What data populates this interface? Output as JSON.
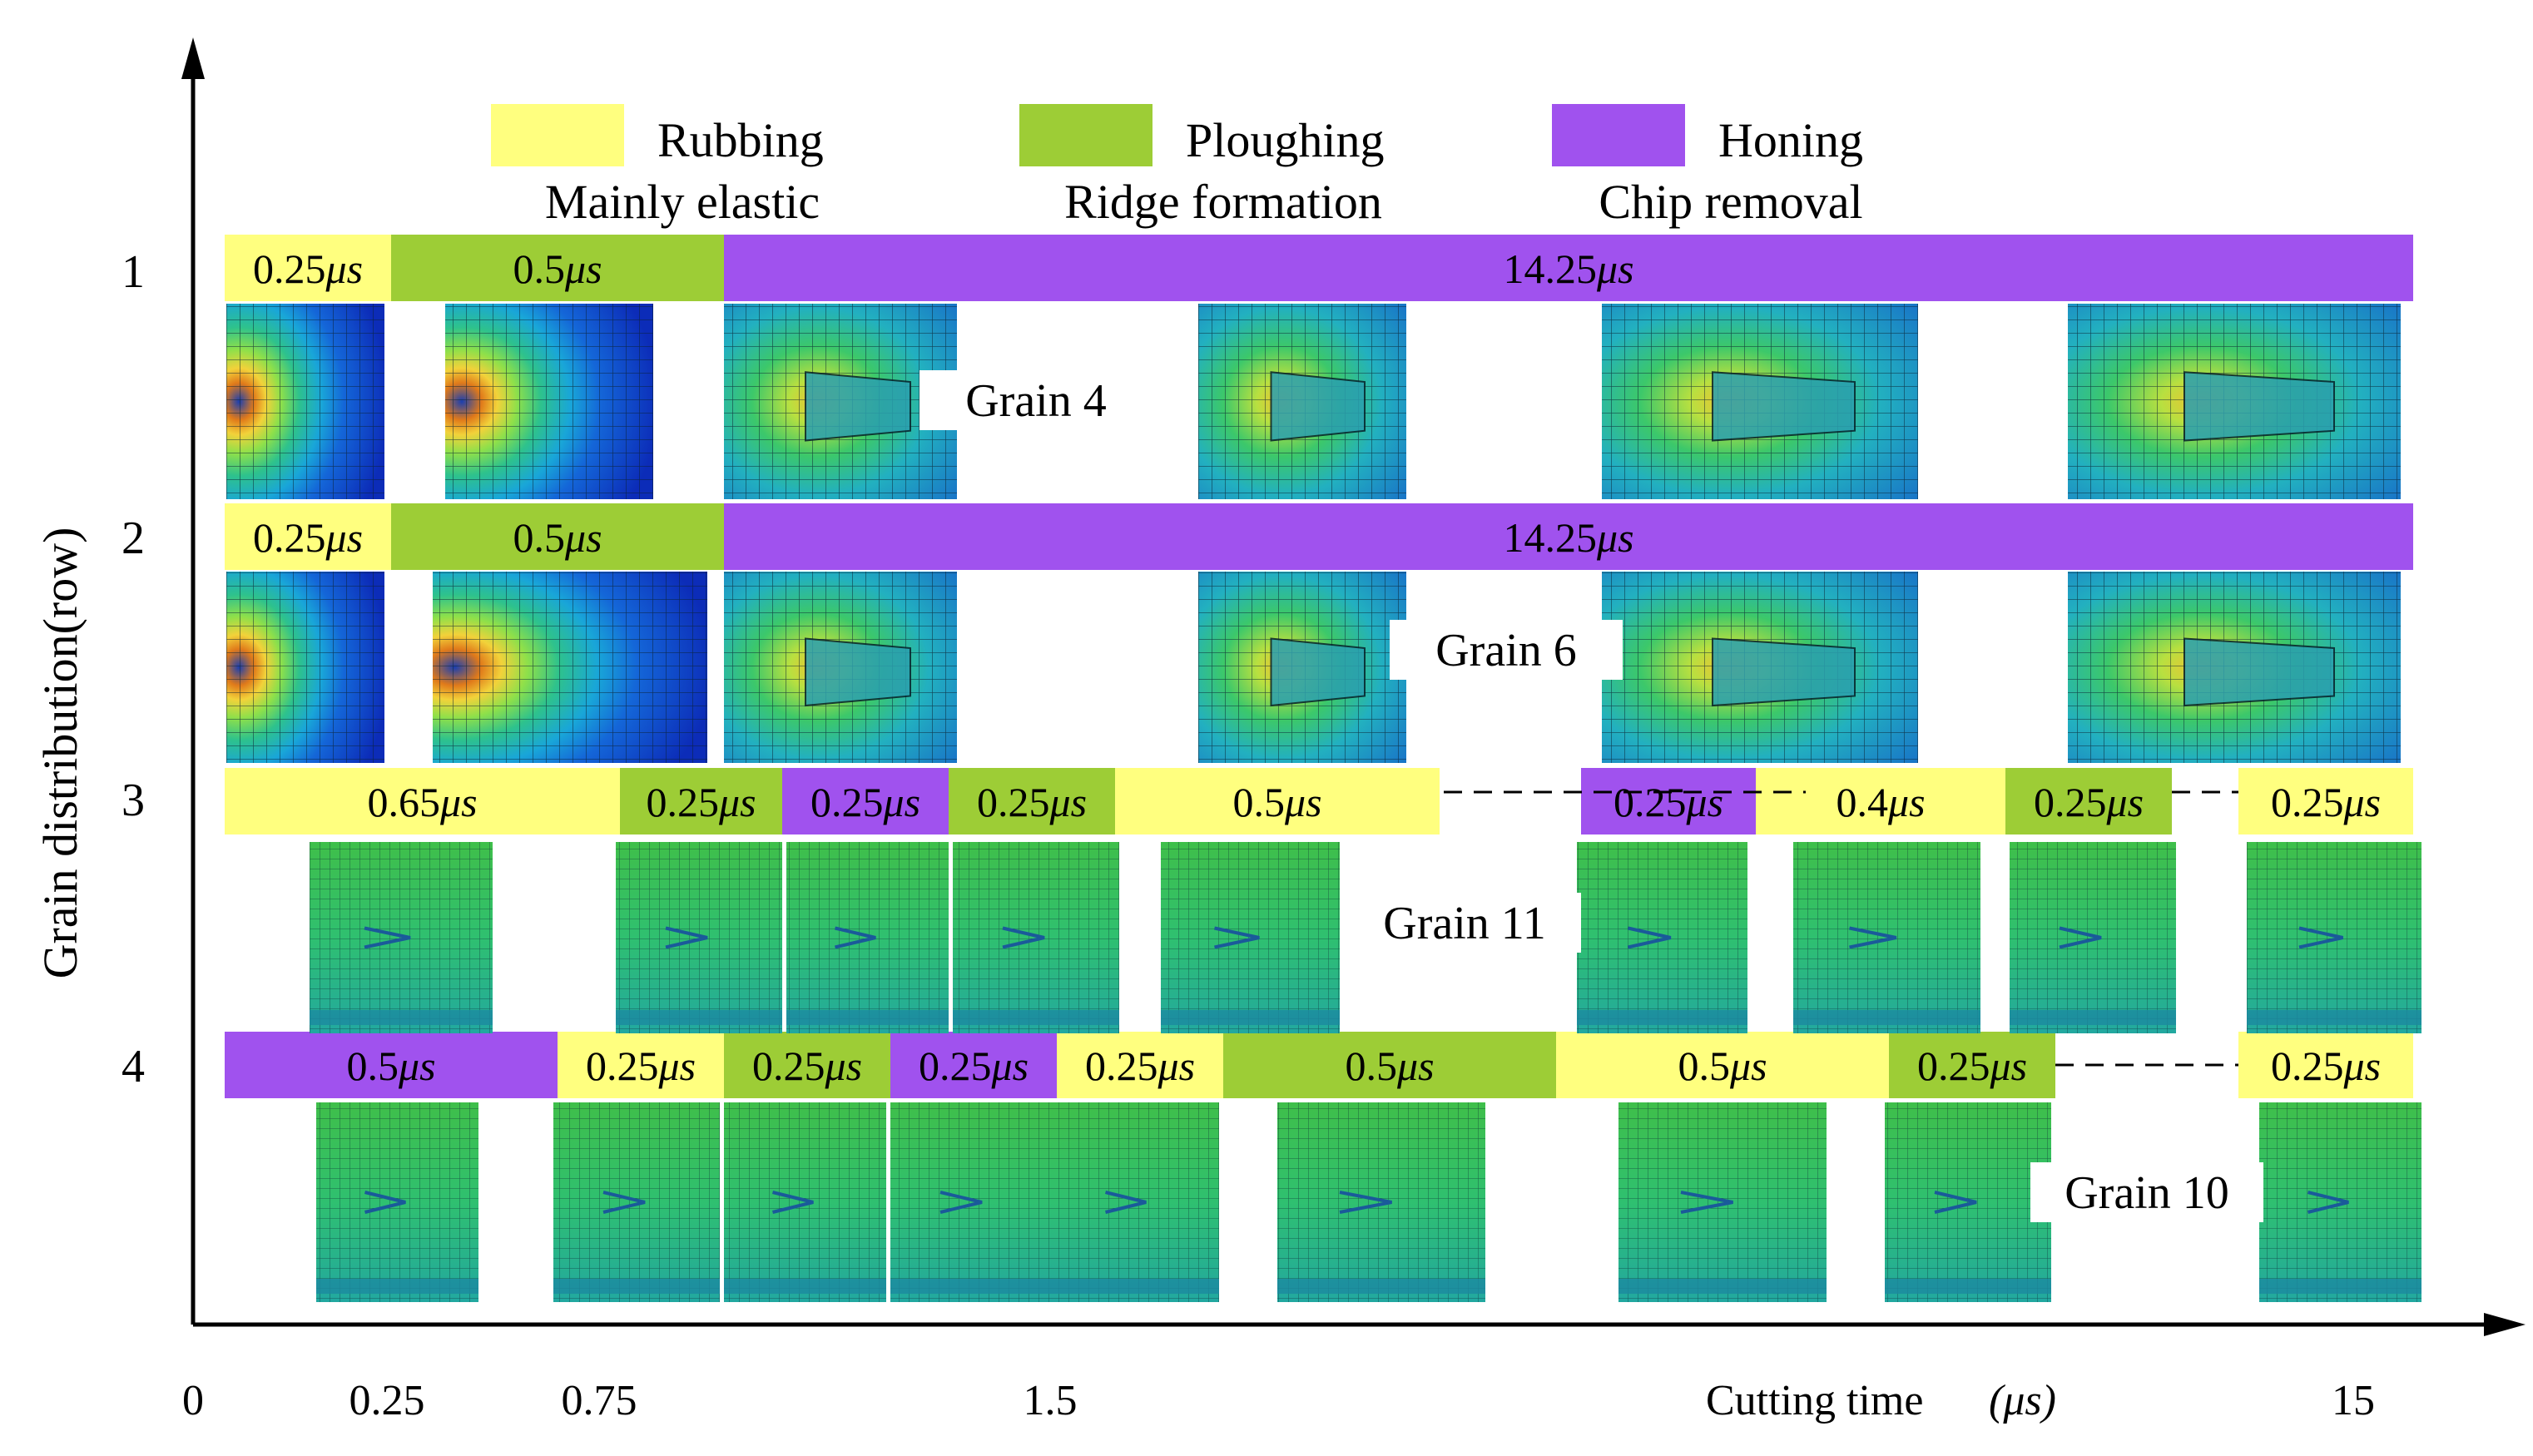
{
  "legend": [
    {
      "label": "Rubbing",
      "sublabel": "Mainly elastic",
      "color": "#ffff7f"
    },
    {
      "label": "Ploughing",
      "sublabel": "Ridge formation",
      "color": "#9dcd36"
    },
    {
      "label": "Honing",
      "sublabel": "Chip removal",
      "color": "#a052ee"
    }
  ],
  "axes": {
    "y_label": "Grain distribution(row)",
    "x_label": "Cutting time",
    "x_unit": "(μs)",
    "x_ticks": [
      "0",
      "0.25",
      "0.75",
      "1.5",
      "15"
    ],
    "row_labels": [
      "1",
      "2",
      "3",
      "4"
    ]
  },
  "rows": [
    {
      "grain_label": "Grain 4",
      "segments": [
        {
          "val": "0.25",
          "phase": "rubbing"
        },
        {
          "val": "0.5",
          "phase": "ploughing"
        },
        {
          "val": "14.25",
          "phase": "honing"
        }
      ],
      "sims": [
        "stress",
        "stress",
        "chip",
        "chip",
        "chip",
        "chip"
      ]
    },
    {
      "grain_label": "Grain 6",
      "segments": [
        {
          "val": "0.25",
          "phase": "rubbing"
        },
        {
          "val": "0.5",
          "phase": "ploughing"
        },
        {
          "val": "14.25",
          "phase": "honing"
        }
      ],
      "sims": [
        "stress",
        "stress",
        "chip",
        "chip",
        "chip",
        "chip"
      ]
    },
    {
      "grain_label": "Grain 11",
      "segments": [
        {
          "val": "0.65",
          "phase": "rubbing"
        },
        {
          "val": "0.25",
          "phase": "ploughing"
        },
        {
          "val": "0.25",
          "phase": "honing"
        },
        {
          "val": "0.25",
          "phase": "ploughing"
        },
        {
          "val": "0.5",
          "phase": "rubbing"
        },
        {
          "val": "0.25",
          "phase": "honing"
        },
        {
          "val": "0.4",
          "phase": "rubbing"
        },
        {
          "val": "0.25",
          "phase": "ploughing"
        },
        {
          "val": "0.25",
          "phase": "rubbing"
        }
      ],
      "sims": [
        "mesh",
        "mesh",
        "mesh",
        "mesh",
        "mesh",
        "mesh",
        "mesh",
        "mesh",
        "mesh"
      ]
    },
    {
      "grain_label": "Grain 10",
      "segments": [
        {
          "val": "0.5",
          "phase": "honing"
        },
        {
          "val": "0.25",
          "phase": "rubbing"
        },
        {
          "val": "0.25",
          "phase": "ploughing"
        },
        {
          "val": "0.25",
          "phase": "honing"
        },
        {
          "val": "0.25",
          "phase": "rubbing"
        },
        {
          "val": "0.5",
          "phase": "ploughing"
        },
        {
          "val": "0.5",
          "phase": "rubbing"
        },
        {
          "val": "0.25",
          "phase": "ploughing"
        },
        {
          "val": "0.25",
          "phase": "rubbing"
        }
      ],
      "sims": [
        "mesh",
        "mesh",
        "mesh",
        "mesh",
        "mesh",
        "mesh",
        "mesh",
        "mesh",
        "mesh"
      ]
    }
  ],
  "unit_symbol": "μs"
}
